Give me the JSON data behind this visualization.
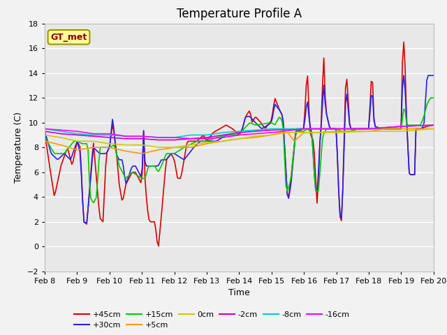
{
  "title": "Temperature Profile A",
  "xlabel": "Time",
  "ylabel": "Temperature (C)",
  "ylim": [
    -2,
    18
  ],
  "annotation": "GT_met",
  "series": [
    "+45cm",
    "+30cm",
    "+15cm",
    "+5cm",
    "0cm",
    "-2cm",
    "-8cm",
    "-16cm"
  ],
  "series_colors": [
    "#dd0000",
    "#2222ee",
    "#00cc00",
    "#ff9900",
    "#cccc00",
    "#cc00cc",
    "#00cccc",
    "#ff00ff"
  ],
  "x_tick_labels": [
    "Feb 8",
    "Feb 9",
    "Feb 10",
    "Feb 11",
    "Feb 12",
    "Feb 13",
    "Feb 14",
    "Feb 15",
    "Feb 16",
    "Feb 17",
    "Feb 18",
    "Feb 19",
    "Feb 20"
  ],
  "fig_bg_color": "#f2f2f2",
  "plot_bg_color": "#e8e8e8",
  "grid_color": "#ffffff",
  "title_fontsize": 12,
  "tick_fontsize": 8,
  "ylabel_fontsize": 9,
  "xlabel_fontsize": 9
}
